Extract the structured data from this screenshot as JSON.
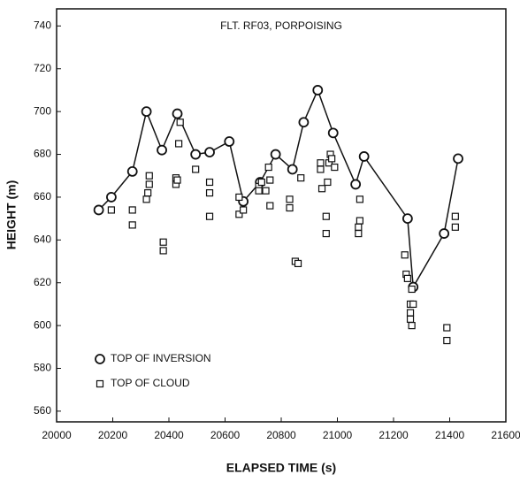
{
  "chart_data": {
    "type": "scatter",
    "title": "FLT. RF03, PORPOISING",
    "x_label": "ELAPSED TIME (s)",
    "y_label": "HEIGHT (m)",
    "xlim": [
      20000,
      21600
    ],
    "xticks": [
      20000,
      20200,
      20400,
      20600,
      20800,
      21000,
      21200,
      21400,
      21600
    ],
    "ylim": [
      555,
      748
    ],
    "yticks": [
      560,
      580,
      600,
      620,
      640,
      660,
      680,
      700,
      720,
      740
    ],
    "grid": false,
    "legend": "lower left",
    "series": [
      {
        "name": "TOP OF INVERSION",
        "color": "#111111",
        "marker": "circle",
        "line": true,
        "x": [
          20150,
          20195,
          20270,
          20320,
          20375,
          20430,
          20495,
          20545,
          20615,
          20665,
          20725,
          20780,
          20840,
          20880,
          20930,
          20985,
          21065,
          21095,
          21250,
          21270,
          21380,
          21430
        ],
        "values": [
          654,
          660,
          672,
          700,
          682,
          699,
          680,
          681,
          686,
          658,
          667,
          680,
          673,
          695,
          710,
          690,
          666,
          679,
          650,
          618,
          643,
          678
        ]
      },
      {
        "name": "TOP OF CLOUD",
        "color": "#111111",
        "marker": "square",
        "line": false,
        "x": [
          20195,
          20270,
          20270,
          20330,
          20330,
          20325,
          20320,
          20380,
          20380,
          20425,
          20425,
          20430,
          20435,
          20440,
          20495,
          20545,
          20545,
          20545,
          20650,
          20650,
          20665,
          20720,
          20720,
          20730,
          20745,
          20755,
          20760,
          20760,
          20830,
          20830,
          20850,
          20860,
          20870,
          20940,
          20940,
          20945,
          20960,
          20960,
          20965,
          20970,
          20975,
          20980,
          20990,
          21080,
          21080,
          21075,
          21075,
          21240,
          21245,
          21250,
          21260,
          21260,
          21260,
          21265,
          21270,
          21265,
          21390,
          21390,
          21420,
          21420
        ],
        "values": [
          654,
          654,
          647,
          670,
          666,
          662,
          659,
          639,
          635,
          669,
          666,
          668,
          685,
          695,
          673,
          667,
          662,
          651,
          660,
          652,
          654,
          665,
          663,
          667,
          663,
          674,
          668,
          656,
          659,
          655,
          630,
          629,
          669,
          676,
          673,
          664,
          651,
          643,
          667,
          676,
          680,
          678,
          674,
          659,
          649,
          646,
          643,
          633,
          624,
          622,
          610,
          606,
          603,
          600,
          610,
          617,
          599,
          593,
          651,
          646
        ]
      }
    ]
  }
}
